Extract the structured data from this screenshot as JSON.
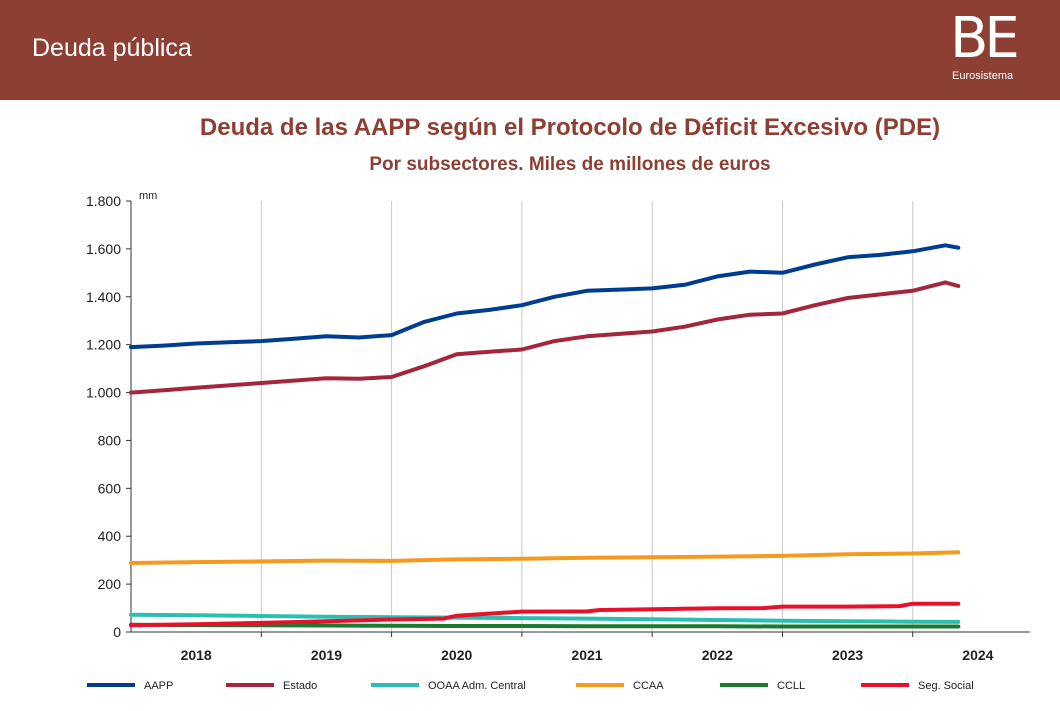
{
  "header": {
    "title": "Deuda pública",
    "logo_mark": "BE",
    "logo_text": "Eurosistema",
    "background": "#8e3f33"
  },
  "chart_data": {
    "type": "line",
    "title": "Deuda de las AAPP según el Protocolo de Déficit Excesivo (PDE)",
    "subtitle": "Por subsectores. Miles de millones de euros",
    "ylabel": "mm",
    "xlabel": "",
    "ylim": [
      0,
      1800
    ],
    "yticks": [
      0,
      200,
      400,
      600,
      800,
      1000,
      1200,
      1400,
      1600,
      1800
    ],
    "ytick_labels": [
      "0",
      "200",
      "400",
      "600",
      "800",
      "1.000",
      "1.200",
      "1.400",
      "1.600",
      "1.800"
    ],
    "xlim": [
      2017.5,
      2024.4
    ],
    "xticks": [
      2018,
      2019,
      2020,
      2021,
      2022,
      2023,
      2024
    ],
    "xtick_labels": [
      "2018",
      "2019",
      "2020",
      "2021",
      "2022",
      "2023",
      "2024"
    ],
    "grid": "vertical",
    "legend": "bottom",
    "series": [
      {
        "name": "AAPP",
        "color": "#003d8f",
        "x": [
          2017.5,
          2017.75,
          2018.0,
          2018.25,
          2018.5,
          2018.75,
          2019.0,
          2019.25,
          2019.5,
          2019.75,
          2020.0,
          2020.25,
          2020.5,
          2020.75,
          2021.0,
          2021.25,
          2021.5,
          2021.75,
          2022.0,
          2022.25,
          2022.5,
          2022.75,
          2023.0,
          2023.25,
          2023.5,
          2023.75,
          2023.85
        ],
        "values": [
          1190,
          1196,
          1205,
          1210,
          1215,
          1225,
          1235,
          1230,
          1240,
          1295,
          1330,
          1345,
          1365,
          1400,
          1425,
          1430,
          1435,
          1450,
          1485,
          1505,
          1500,
          1535,
          1565,
          1575,
          1590,
          1615,
          1605
        ]
      },
      {
        "name": "Estado",
        "color": "#a3263c",
        "x": [
          2017.5,
          2017.75,
          2018.0,
          2018.25,
          2018.5,
          2018.75,
          2019.0,
          2019.25,
          2019.5,
          2019.75,
          2020.0,
          2020.25,
          2020.5,
          2020.75,
          2021.0,
          2021.25,
          2021.5,
          2021.75,
          2022.0,
          2022.25,
          2022.5,
          2022.75,
          2023.0,
          2023.25,
          2023.5,
          2023.75,
          2023.85
        ],
        "values": [
          1000,
          1010,
          1020,
          1030,
          1040,
          1050,
          1060,
          1058,
          1065,
          1110,
          1160,
          1170,
          1180,
          1215,
          1235,
          1245,
          1255,
          1275,
          1305,
          1325,
          1330,
          1365,
          1395,
          1410,
          1425,
          1460,
          1445
        ]
      },
      {
        "name": "OOAA Adm. Central",
        "color": "#2bbfb3",
        "x": [
          2017.5,
          2018.0,
          2018.5,
          2019.0,
          2019.5,
          2020.0,
          2020.5,
          2021.0,
          2021.5,
          2022.0,
          2022.5,
          2023.0,
          2023.5,
          2023.85
        ],
        "values": [
          72,
          70,
          67,
          64,
          62,
          60,
          58,
          56,
          53,
          50,
          47,
          45,
          43,
          42
        ]
      },
      {
        "name": "CCAA",
        "color": "#f39a1f",
        "x": [
          2017.5,
          2018.0,
          2018.5,
          2019.0,
          2019.5,
          2020.0,
          2020.5,
          2021.0,
          2021.5,
          2022.0,
          2022.5,
          2023.0,
          2023.5,
          2023.85
        ],
        "values": [
          288,
          292,
          295,
          298,
          297,
          303,
          306,
          310,
          312,
          315,
          318,
          325,
          328,
          333
        ]
      },
      {
        "name": "CCLL",
        "color": "#1c7a2f",
        "x": [
          2017.5,
          2018.0,
          2018.5,
          2019.0,
          2019.5,
          2020.0,
          2020.5,
          2021.0,
          2021.5,
          2022.0,
          2022.5,
          2023.0,
          2023.5,
          2023.85
        ],
        "values": [
          30,
          29,
          28,
          27,
          26,
          25,
          25,
          24,
          24,
          24,
          23,
          23,
          23,
          23
        ]
      },
      {
        "name": "Seg. Social",
        "color": "#e8102a",
        "x": [
          2017.5,
          2018.0,
          2018.5,
          2019.0,
          2019.5,
          2019.9,
          2020.0,
          2020.5,
          2021.0,
          2021.1,
          2021.5,
          2022.0,
          2022.35,
          2022.5,
          2023.0,
          2023.4,
          2023.5,
          2023.85
        ],
        "values": [
          28,
          32,
          38,
          45,
          52,
          56,
          68,
          85,
          86,
          92,
          95,
          99,
          100,
          106,
          106,
          108,
          118,
          118
        ]
      }
    ]
  }
}
